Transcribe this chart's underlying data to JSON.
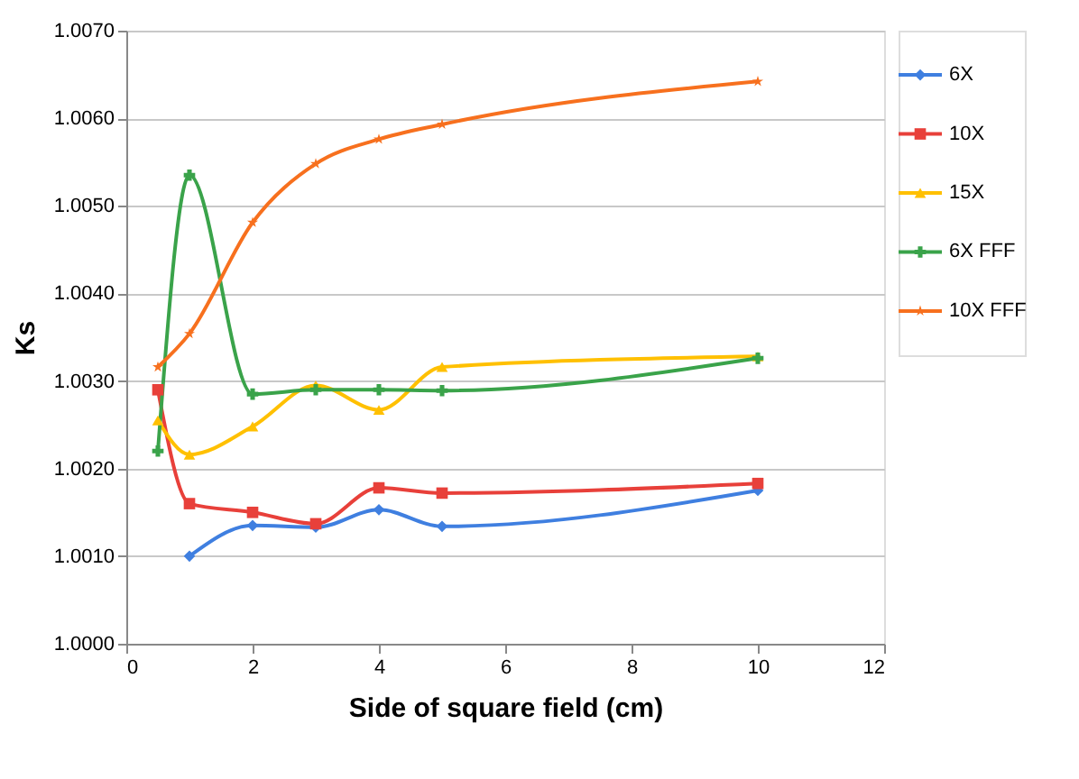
{
  "chart_data": {
    "type": "line",
    "xlabel": "Side of square field (cm)",
    "ylabel": "Ks",
    "xlim": [
      0,
      12
    ],
    "xticks": [
      0,
      2,
      4,
      6,
      8,
      10,
      12
    ],
    "ylim": [
      1.0,
      1.007
    ],
    "yticks": [
      {
        "value": 1.0,
        "label": "1.0000"
      },
      {
        "value": 1.001,
        "label": "1.0010"
      },
      {
        "value": 1.002,
        "label": "1.0020"
      },
      {
        "value": 1.003,
        "label": "1.0030"
      },
      {
        "value": 1.004,
        "label": "1.0040"
      },
      {
        "value": 1.005,
        "label": "1.0050"
      },
      {
        "value": 1.006,
        "label": "1.0060"
      },
      {
        "value": 1.007,
        "label": "1.0070"
      }
    ],
    "grid": "y",
    "legend": "right",
    "series": [
      {
        "name": "6X",
        "color": "#3f7fe0",
        "marker": "diamond",
        "x": [
          1,
          2,
          3,
          4,
          5,
          10
        ],
        "values": [
          1.001,
          1.00135,
          1.00133,
          1.00153,
          1.00134,
          1.00175
        ]
      },
      {
        "name": "10X",
        "color": "#e8403a",
        "marker": "square",
        "x": [
          0.5,
          1,
          2,
          3,
          4,
          5,
          10
        ],
        "values": [
          1.0029,
          1.0016,
          1.0015,
          1.00137,
          1.00178,
          1.00172,
          1.00183
        ]
      },
      {
        "name": "15X",
        "color": "#ffc000",
        "marker": "triangle",
        "x": [
          0.5,
          1,
          2,
          3,
          4,
          5,
          10
        ],
        "values": [
          1.00255,
          1.00216,
          1.00248,
          1.00295,
          1.00267,
          1.00316,
          1.00328
        ]
      },
      {
        "name": "6X FFF",
        "color": "#3aa34a",
        "marker": "cross",
        "x": [
          0.5,
          1,
          2,
          3,
          4,
          5,
          10
        ],
        "values": [
          1.0022,
          1.00535,
          1.00285,
          1.0029,
          1.0029,
          1.00289,
          1.00326
        ]
      },
      {
        "name": "10X FFF",
        "color": "#f7701e",
        "marker": "star",
        "x": [
          0.5,
          1,
          2,
          3,
          4,
          5,
          10
        ],
        "values": [
          1.00316,
          1.00354,
          1.00481,
          1.00548,
          1.00576,
          1.00593,
          1.00642
        ]
      }
    ]
  }
}
